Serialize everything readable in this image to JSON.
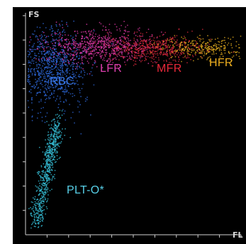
{
  "chart_data": {
    "type": "scatter",
    "title": "",
    "xlabel": "FL",
    "ylabel": "FS",
    "xlim": [
      0,
      100
    ],
    "ylim": [
      0,
      100
    ],
    "x_ticks": 10,
    "y_ticks": 9,
    "grid": false,
    "background": "#000000",
    "series": [
      {
        "name": "RBC",
        "color": "#2f6be0",
        "center": [
          12,
          76
        ],
        "spread": [
          8,
          9
        ],
        "count": 900
      },
      {
        "name": "LFR",
        "color": "#e23aa8",
        "center": [
          34,
          86
        ],
        "spread": [
          12,
          4
        ],
        "count": 700
      },
      {
        "name": "MFR",
        "color": "#d8283c",
        "center": [
          60,
          85
        ],
        "spread": [
          11,
          3
        ],
        "count": 500
      },
      {
        "name": "HFR",
        "color": "#e8b020",
        "center": [
          84,
          85
        ],
        "spread": [
          10,
          2.5
        ],
        "count": 300
      },
      {
        "name": "PLT-O*",
        "color": "#38c7e0",
        "center": [
          9,
          28
        ],
        "spread": [
          4,
          16
        ],
        "count": 650
      }
    ]
  },
  "labels": {
    "rbc": {
      "text": "RBC",
      "color": "#3a78e8"
    },
    "lfr": {
      "text": "LFR",
      "color": "#e040b0"
    },
    "mfr": {
      "text": "MFR",
      "color": "#e8283a"
    },
    "hfr": {
      "text": "HFR",
      "color": "#f0b020"
    },
    "pltO": {
      "text": "PLT-O*",
      "color": "#58d0e8"
    }
  }
}
